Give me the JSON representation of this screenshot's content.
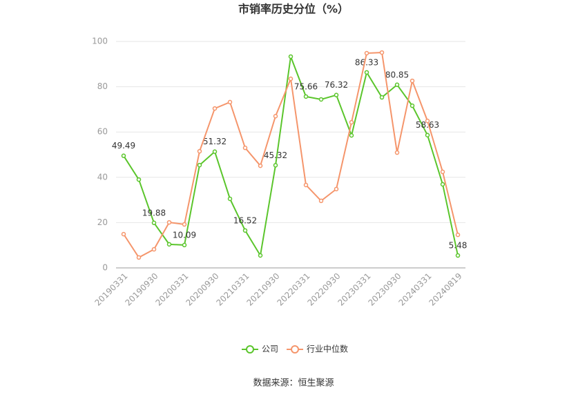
{
  "chart_data": {
    "type": "line",
    "title": "市销率历史分位（%）",
    "categories": [
      "20190331",
      null,
      "20190930",
      null,
      "20200331",
      null,
      "20200930",
      null,
      "20210331",
      null,
      "20210930",
      null,
      "20220331",
      null,
      "20220930",
      null,
      "20230331",
      null,
      "20230930",
      null,
      "20240331",
      null,
      "20240819"
    ],
    "series": [
      {
        "name": "公司",
        "color": "#5ac52b",
        "values": [
          49.49,
          39.0,
          19.88,
          10.4,
          10.09,
          45.4,
          51.32,
          30.5,
          16.52,
          5.5,
          45.32,
          93.3,
          75.66,
          74.4,
          76.32,
          58.5,
          86.33,
          75.3,
          80.85,
          71.6,
          58.63,
          36.9,
          5.48
        ],
        "value_labels": [
          "49.49",
          null,
          "19.88",
          null,
          "10.09",
          null,
          "51.32",
          null,
          "16.52",
          null,
          "45.32",
          null,
          "75.66",
          null,
          "76.32",
          null,
          "86.33",
          null,
          "80.85",
          null,
          "58.63",
          null,
          "5.48"
        ]
      },
      {
        "name": "行业中位数",
        "color": "#f5956b",
        "values": [
          14.9,
          4.6,
          8.2,
          20.1,
          19.2,
          51.5,
          70.4,
          73.2,
          53.0,
          45.1,
          67.0,
          83.5,
          36.6,
          29.6,
          34.8,
          64.3,
          94.8,
          95.1,
          50.9,
          82.6,
          64.9,
          42.4,
          14.6
        ]
      }
    ],
    "ylim": [
      0,
      100
    ],
    "yticks": [
      0,
      20,
      40,
      60,
      80,
      100
    ],
    "grid": true,
    "legend": "bottom",
    "source": "数据来源：恒生聚源"
  }
}
